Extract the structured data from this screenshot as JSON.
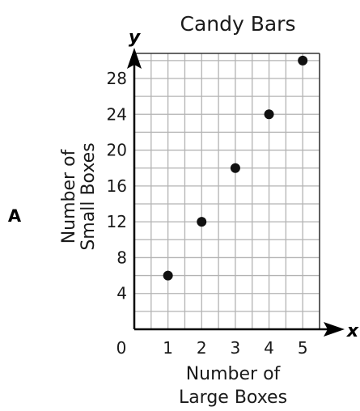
{
  "option_letter": "A",
  "chart_data": {
    "type": "scatter",
    "title": "Candy Bars",
    "xlabel": [
      "Number of",
      "Large Boxes"
    ],
    "ylabel": [
      "Number of",
      "Small Boxes"
    ],
    "x_axis_var": "x",
    "y_axis_var": "y",
    "origin_label": "0",
    "x_ticks": [
      "1",
      "2",
      "3",
      "4",
      "5"
    ],
    "y_ticks": [
      "4",
      "8",
      "12",
      "16",
      "20",
      "24",
      "28"
    ],
    "xlim": [
      0,
      5.5
    ],
    "ylim": [
      0,
      30.8
    ],
    "grid": true,
    "points": [
      {
        "x": 1,
        "y": 6
      },
      {
        "x": 2,
        "y": 12
      },
      {
        "x": 3,
        "y": 18
      },
      {
        "x": 4,
        "y": 24
      },
      {
        "x": 5,
        "y": 30
      }
    ],
    "colors": {
      "grid": "#b3b3b3",
      "axis": "#000000",
      "point": "#111111"
    }
  }
}
